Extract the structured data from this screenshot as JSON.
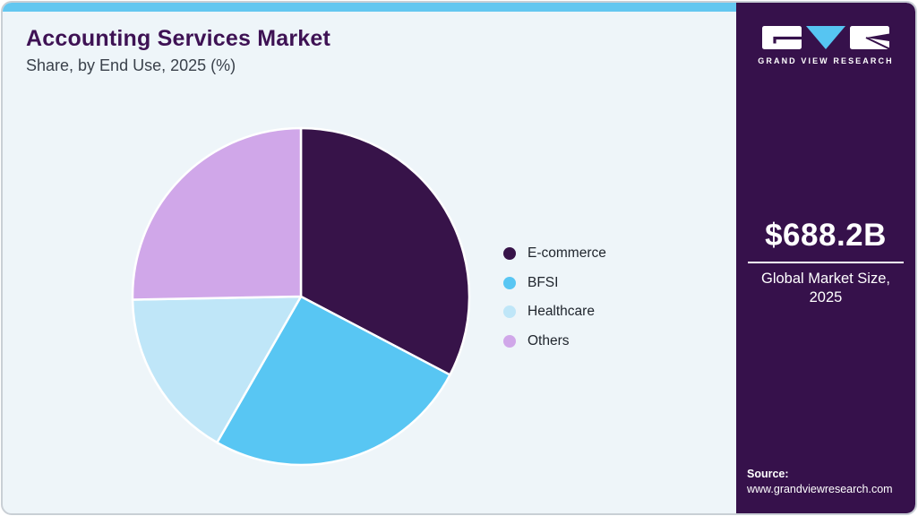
{
  "header": {
    "title": "Accounting Services Market",
    "subtitle": "Share, by End Use, 2025 (%)"
  },
  "chart_data": {
    "type": "pie",
    "title": "Accounting Services Market Share, by End Use, 2025 (%)",
    "categories": [
      "E-commerce",
      "BFSI",
      "Healthcare",
      "Others"
    ],
    "values": [
      32.7,
      25.6,
      16.4,
      25.3
    ],
    "unit": "percent",
    "colors": [
      "#371349",
      "#58c6f3",
      "#bfe6f8",
      "#d0a7e9"
    ],
    "start_angle_deg": -90,
    "direction": "clockwise",
    "legend_position": "right",
    "data_labels_shown": false
  },
  "sidebar": {
    "brand_name": "GRAND VIEW RESEARCH",
    "market_size_value": "$688.2B",
    "market_size_label_line1": "Global Market Size,",
    "market_size_label_line2": "2025",
    "source_label": "Source:",
    "source_url": "www.grandviewresearch.com"
  },
  "colors": {
    "card_background": "#eef5f9",
    "accent_bar": "#63c7f0",
    "sidebar_background": "#36114b",
    "title_text": "#3e1254",
    "logo_triangle": "#56c5f2",
    "pie_slice_border": "#ffffff"
  }
}
